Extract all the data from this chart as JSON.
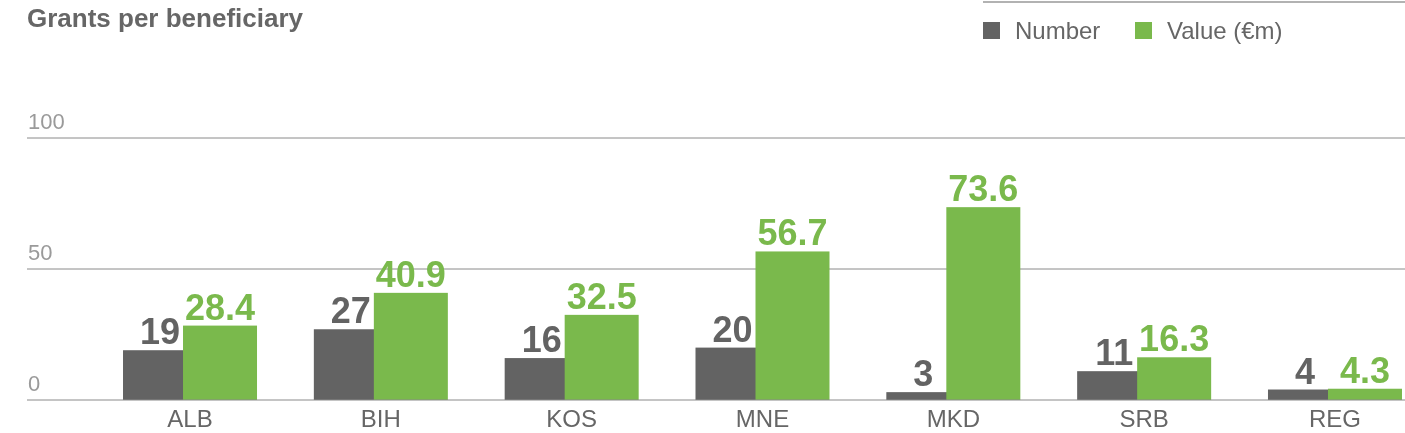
{
  "chart_data": {
    "type": "bar",
    "title": "Grants per beneficiary",
    "categories": [
      "ALB",
      "BIH",
      "KOS",
      "MNE",
      "MKD",
      "SRB",
      "REG"
    ],
    "series": [
      {
        "name": "Number",
        "color": "#636363",
        "values": [
          19,
          27,
          16,
          20,
          3,
          11,
          4
        ]
      },
      {
        "name": "Value (€m)",
        "color": "#7ab94c",
        "values": [
          28.4,
          40.9,
          32.5,
          56.7,
          73.6,
          16.3,
          4.3
        ]
      }
    ],
    "ylim": [
      0,
      100
    ],
    "yticks": [
      0,
      50,
      100
    ],
    "grid": "y",
    "legend": "top right",
    "data_labels": true
  }
}
